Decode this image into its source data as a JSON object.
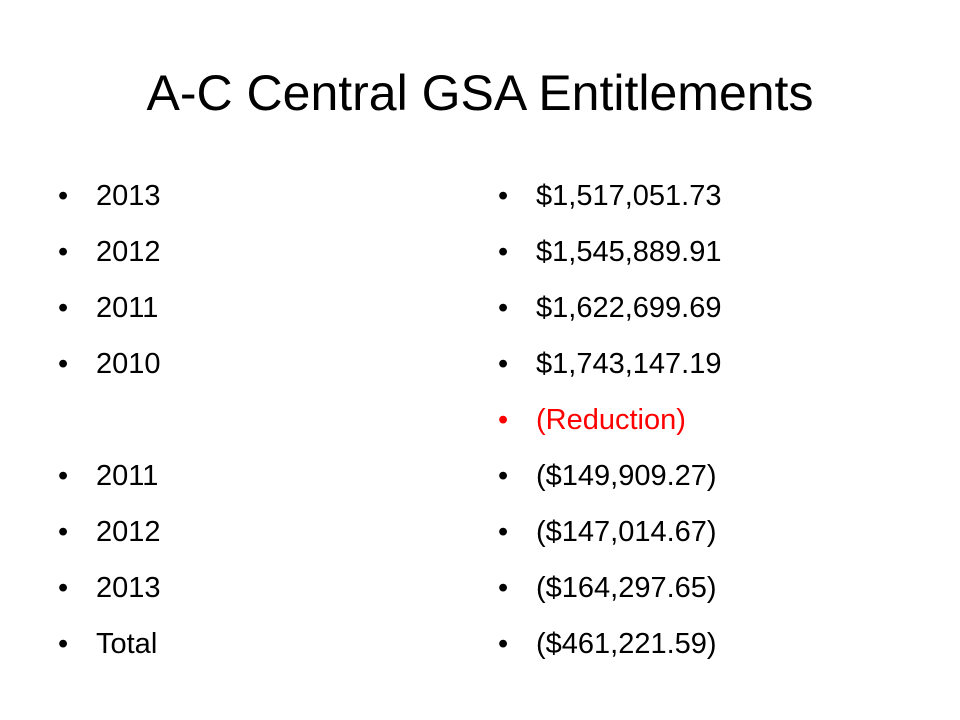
{
  "title": "A-C Central GSA Entitlements",
  "bullet": "•",
  "colors": {
    "text": "#000000",
    "highlight": "#ff0000",
    "background": "#ffffff"
  },
  "left_items": [
    {
      "label": "2013"
    },
    {
      "label": "2012"
    },
    {
      "label": "2011"
    },
    {
      "label": "2010"
    },
    {
      "label": ""
    },
    {
      "label": "2011"
    },
    {
      "label": "2012"
    },
    {
      "label": "2013"
    },
    {
      "label": "Total"
    }
  ],
  "right_items": [
    {
      "label": "$1,517,051.73"
    },
    {
      "label": "$1,545,889.91"
    },
    {
      "label": "$1,622,699.69"
    },
    {
      "label": "$1,743,147.19"
    },
    {
      "label": "(Reduction)",
      "highlight": true
    },
    {
      "label": "($149,909.27)"
    },
    {
      "label": "($147,014.67)"
    },
    {
      "label": "($164,297.65)"
    },
    {
      "label": "($461,221.59)"
    }
  ]
}
